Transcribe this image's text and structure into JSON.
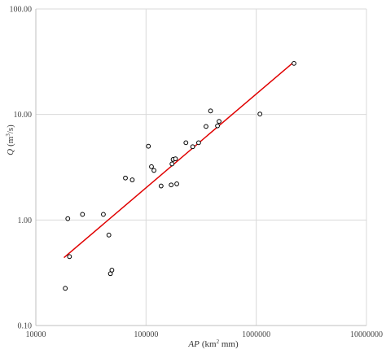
{
  "chart_data": {
    "type": "scatter",
    "xlabel": {
      "symbol": "AP",
      "unit_pre": "(km",
      "unit_sup": "2",
      "unit_post": " mm)"
    },
    "ylabel": {
      "symbol": "Q",
      "unit_pre": "(m",
      "unit_sup": "3",
      "unit_post": "/s)"
    },
    "x_scale": "log",
    "y_scale": "log",
    "xlim": [
      10000,
      10000000
    ],
    "ylim": [
      0.1,
      100
    ],
    "x_ticks": [
      10000,
      100000,
      1000000,
      10000000
    ],
    "x_tick_labels": [
      "10000",
      "100000",
      "1000000",
      "10000000"
    ],
    "y_ticks": [
      0.1,
      1,
      10,
      100
    ],
    "y_tick_labels": [
      "0.10",
      "1.00",
      "10.00",
      "100.00"
    ],
    "grid": true,
    "series": [
      {
        "marker": "open-circle",
        "color": "#000000",
        "points": [
          [
            18500,
            0.225
          ],
          [
            19500,
            1.03
          ],
          [
            20200,
            0.45
          ],
          [
            26500,
            1.13
          ],
          [
            41000,
            1.13
          ],
          [
            46000,
            0.72
          ],
          [
            47500,
            0.31
          ],
          [
            49000,
            0.335
          ],
          [
            65000,
            2.5
          ],
          [
            75000,
            2.4
          ],
          [
            105000,
            5.0
          ],
          [
            112000,
            3.2
          ],
          [
            118000,
            2.95
          ],
          [
            137000,
            2.1
          ],
          [
            169000,
            2.15
          ],
          [
            172000,
            3.4
          ],
          [
            176000,
            3.75
          ],
          [
            185000,
            3.8
          ],
          [
            190000,
            2.2
          ],
          [
            230000,
            5.4
          ],
          [
            265000,
            4.95
          ],
          [
            300000,
            5.4
          ],
          [
            350000,
            7.7
          ],
          [
            385000,
            10.8
          ],
          [
            445000,
            7.8
          ],
          [
            460000,
            8.6
          ],
          [
            1080000,
            10.1
          ],
          [
            2200000,
            30.5
          ]
        ]
      },
      {
        "type": "line",
        "role": "fit",
        "color": "#e00000",
        "points": [
          [
            18000,
            0.44
          ],
          [
            2200000,
            31.5
          ]
        ]
      }
    ]
  }
}
